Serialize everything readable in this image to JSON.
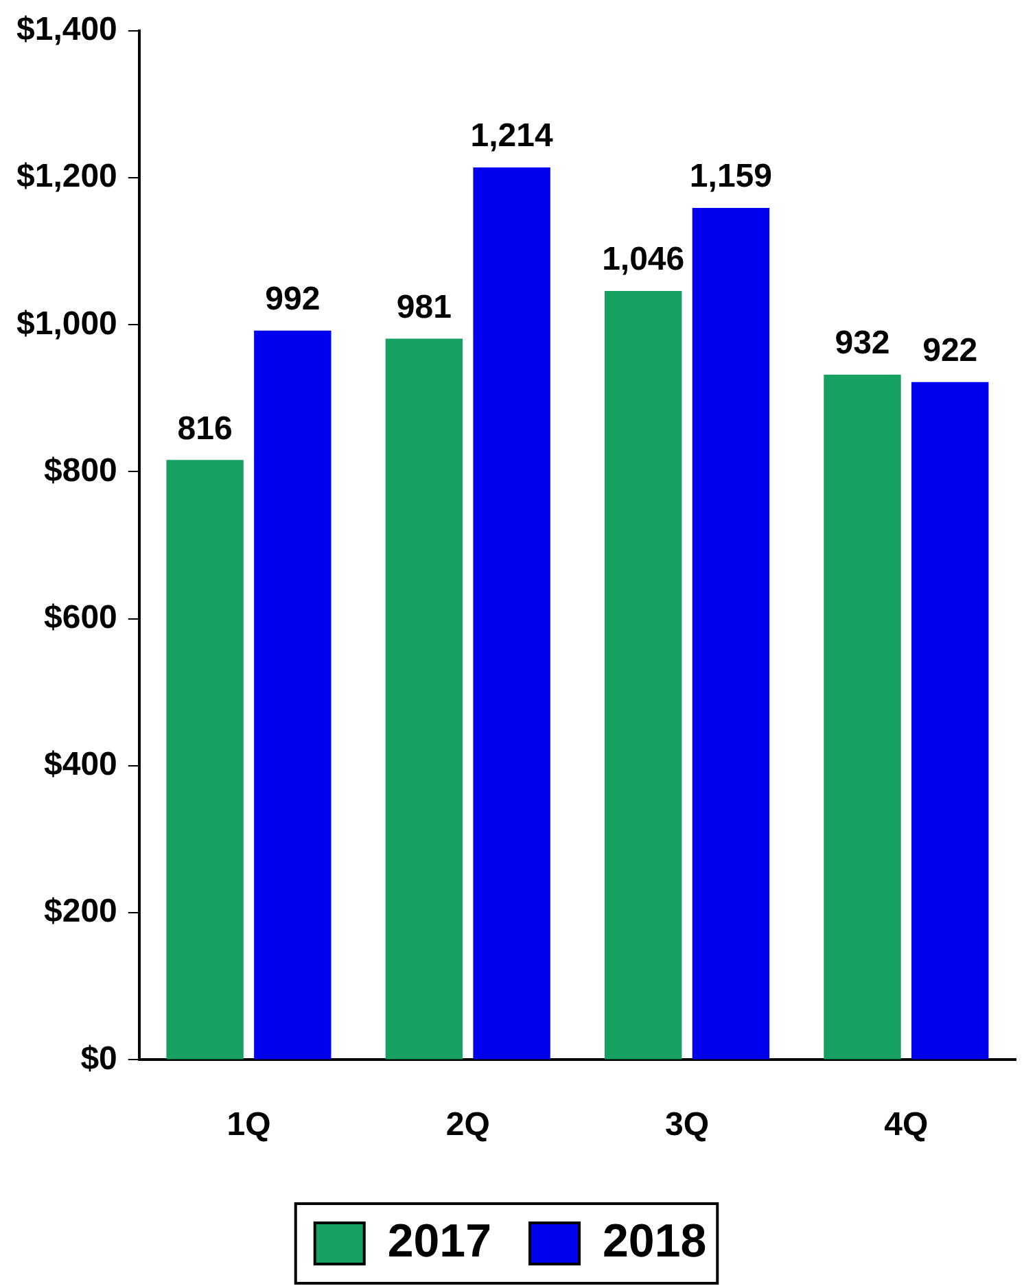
{
  "chart_data": {
    "type": "bar",
    "categories": [
      "1Q",
      "2Q",
      "3Q",
      "4Q"
    ],
    "series": [
      {
        "name": "2017",
        "color": "#16a062",
        "values": [
          816,
          981,
          1046,
          932
        ],
        "value_labels": [
          "816",
          "981",
          "1,046",
          "932"
        ]
      },
      {
        "name": "2018",
        "color": "#0000ee",
        "values": [
          992,
          1214,
          1159,
          922
        ],
        "value_labels": [
          "992",
          "1,214",
          "1,159",
          "922"
        ]
      }
    ],
    "ylim": [
      0,
      1400
    ],
    "yticks": [
      {
        "value": 0,
        "label": "$0"
      },
      {
        "value": 200,
        "label": "$200"
      },
      {
        "value": 400,
        "label": "$400"
      },
      {
        "value": 600,
        "label": "$600"
      },
      {
        "value": 800,
        "label": "$800"
      },
      {
        "value": 1000,
        "label": "$1,000"
      },
      {
        "value": 1200,
        "label": "$1,200"
      },
      {
        "value": 1400,
        "label": "$1,400"
      }
    ],
    "grid": false,
    "legend": "bottom"
  }
}
